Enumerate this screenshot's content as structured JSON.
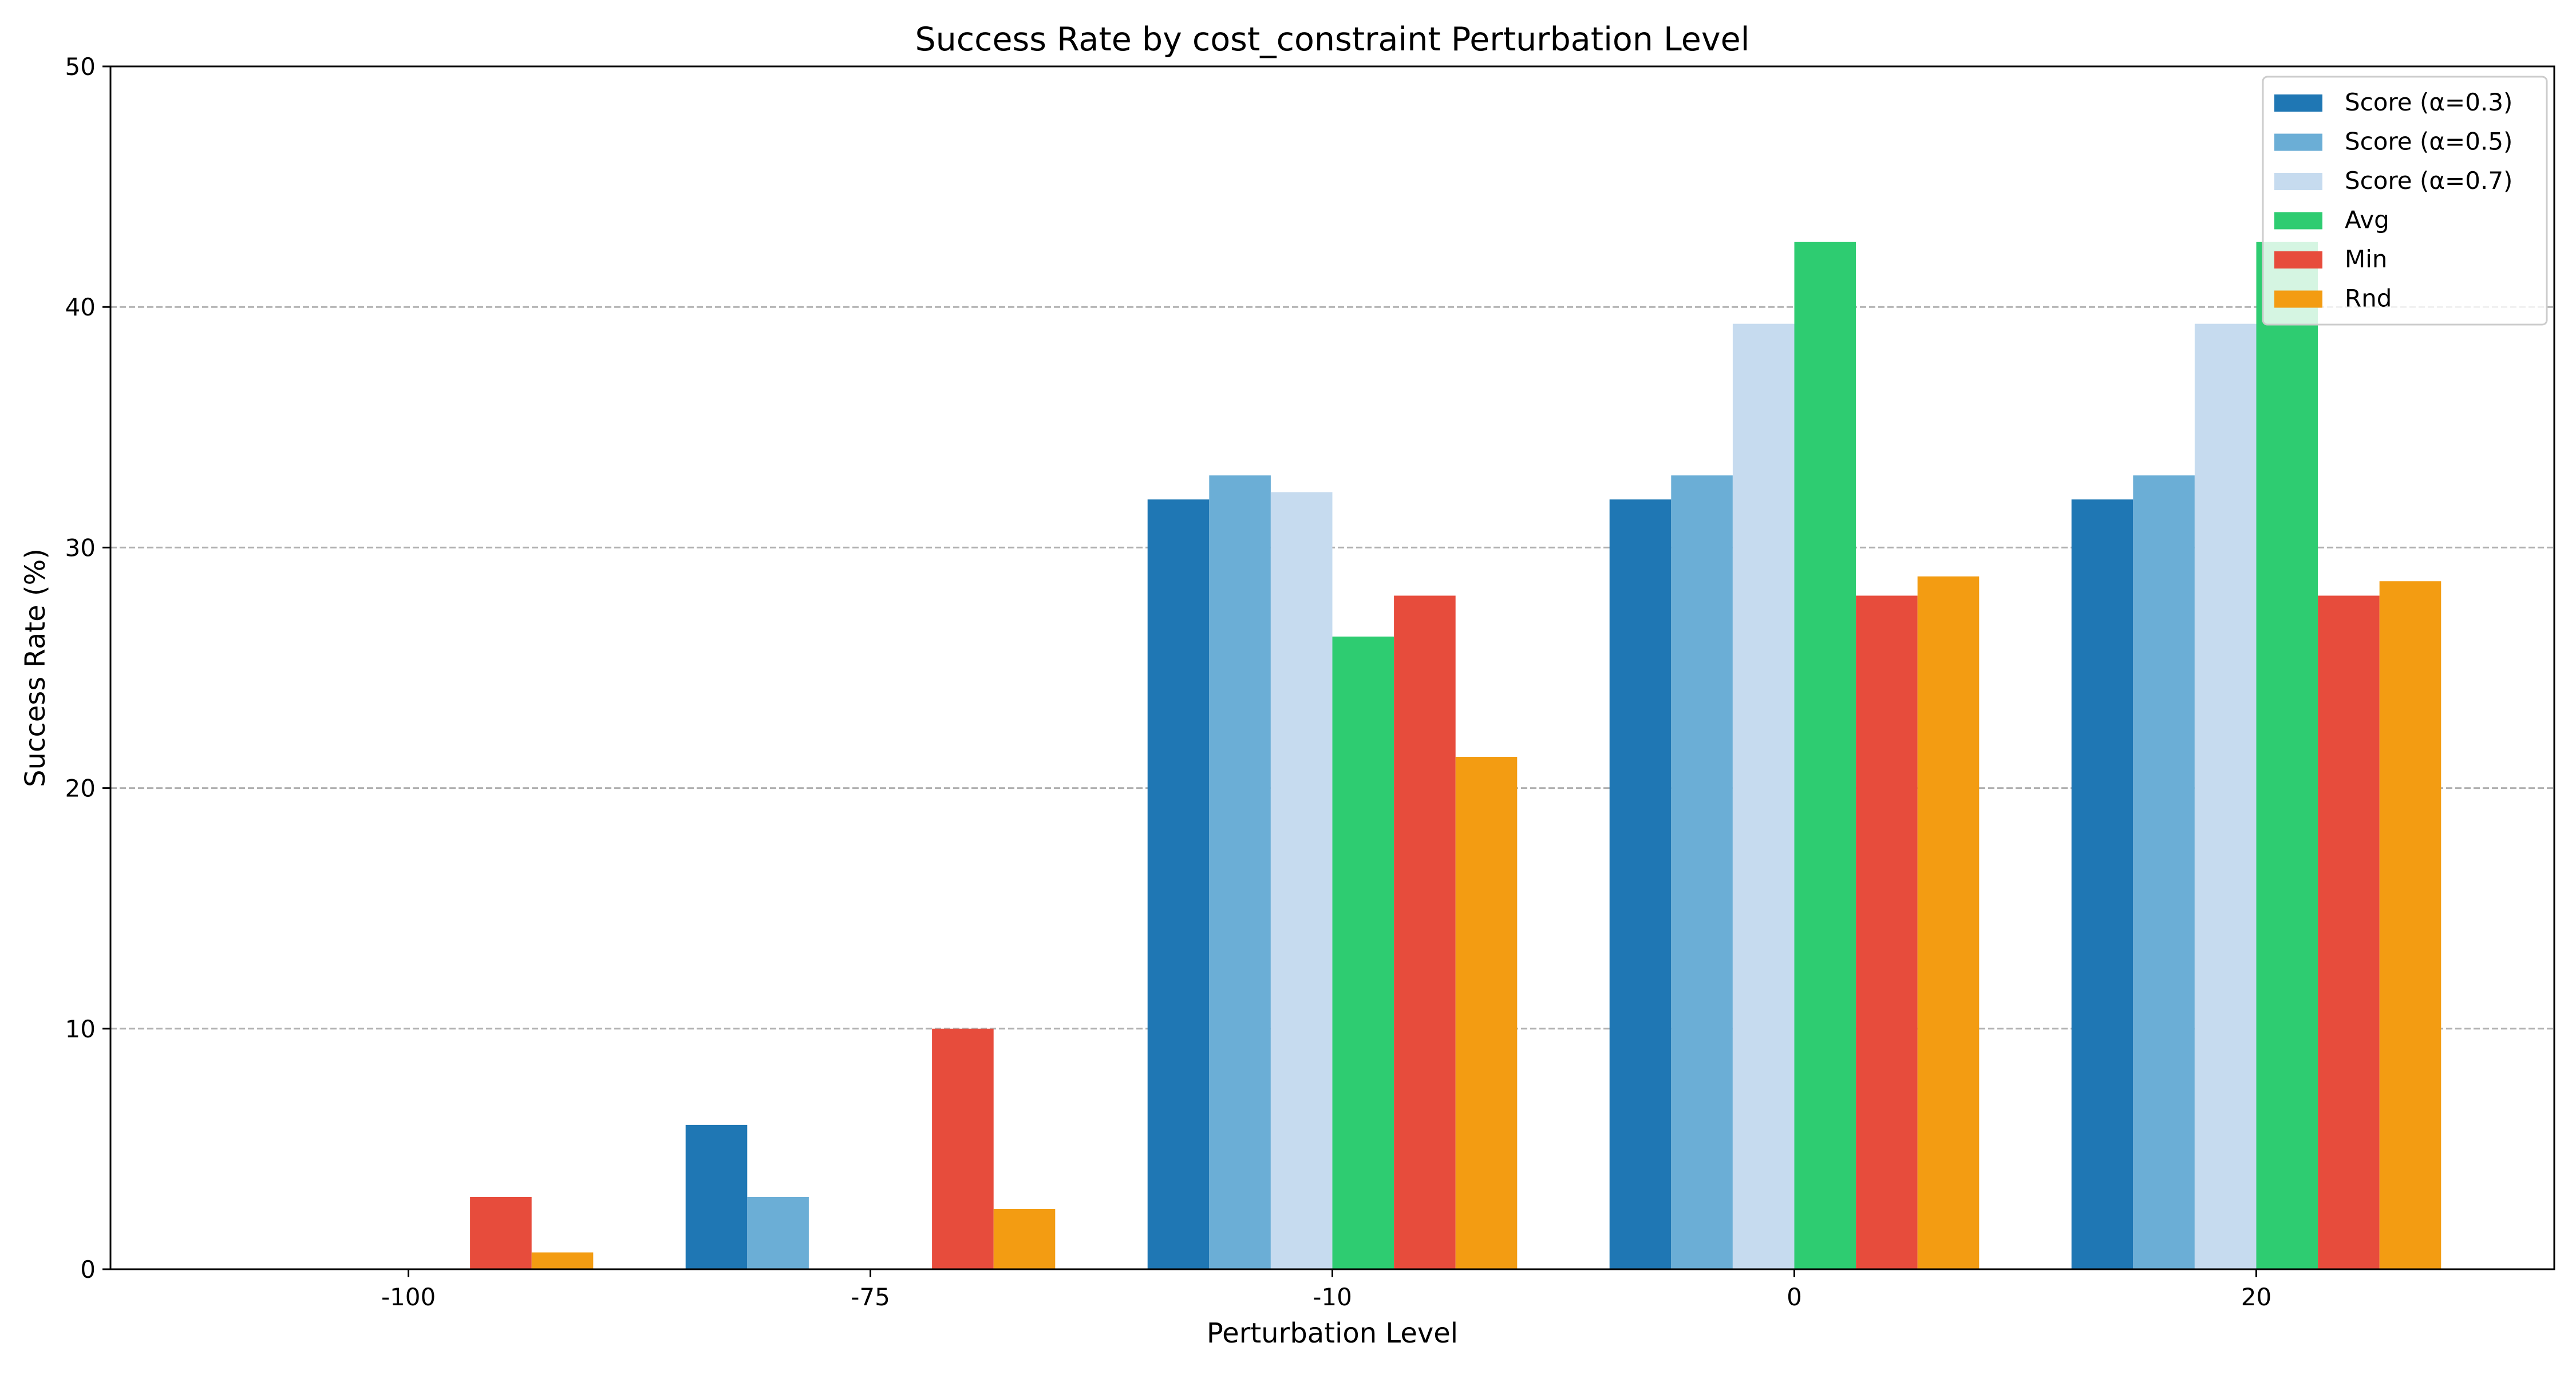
{
  "chart_data": {
    "type": "bar",
    "title": "Success Rate by cost_constraint Perturbation Level",
    "xlabel": "Perturbation Level",
    "ylabel": "Success Rate (%)",
    "ylim": [
      0,
      50
    ],
    "yticks": [
      0,
      10,
      20,
      30,
      40,
      50
    ],
    "grid": "y-dashed",
    "legend_position": "top-right",
    "categories": [
      "-100",
      "-75",
      "-10",
      "0",
      "20"
    ],
    "series": [
      {
        "name": "Score (α=0.3)",
        "color": "#1f77b4",
        "values": [
          0,
          6,
          32,
          32,
          32
        ]
      },
      {
        "name": "Score (α=0.5)",
        "color": "#6baed6",
        "values": [
          0,
          3,
          33,
          33,
          33
        ]
      },
      {
        "name": "Score (α=0.7)",
        "color": "#c6dbef",
        "values": [
          0,
          0,
          32.3,
          39.3,
          39.3
        ]
      },
      {
        "name": "Avg",
        "color": "#2ecc71",
        "values": [
          0,
          0,
          26.3,
          42.7,
          42.7
        ]
      },
      {
        "name": "Min",
        "color": "#e74c3c",
        "values": [
          3,
          10,
          28,
          28,
          28
        ]
      },
      {
        "name": "Rnd",
        "color": "#f39c12",
        "values": [
          0.7,
          2.5,
          21.3,
          28.8,
          28.6
        ]
      }
    ]
  }
}
